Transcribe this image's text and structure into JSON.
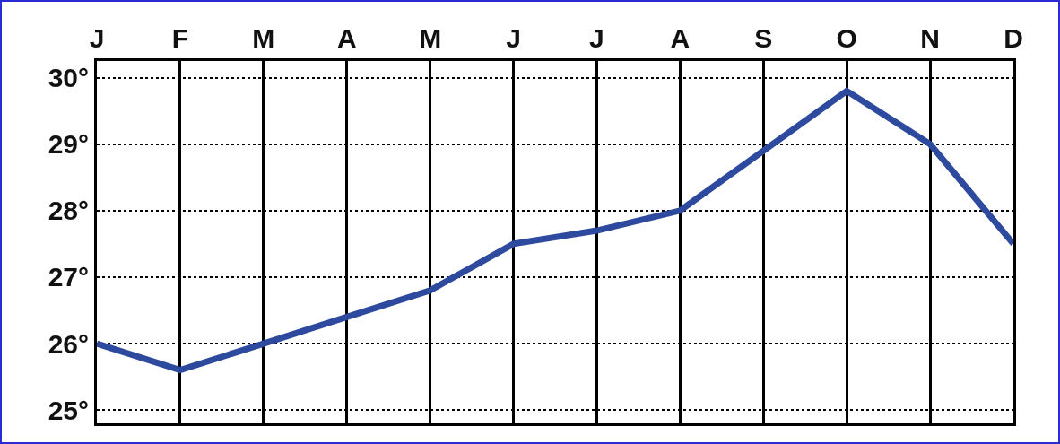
{
  "chart_data": {
    "type": "line",
    "categories": [
      "J",
      "F",
      "M",
      "A",
      "M",
      "J",
      "J",
      "A",
      "S",
      "O",
      "N",
      "D"
    ],
    "series": [
      {
        "color": "#2e4a9e",
        "values": [
          26.0,
          25.6,
          26.0,
          26.4,
          26.8,
          27.5,
          27.7,
          28.0,
          28.9,
          29.8,
          29.0,
          27.5
        ]
      }
    ],
    "ylim": [
      24.8,
      30.25
    ],
    "yticks": [
      {
        "value": 25,
        "label": "25°"
      },
      {
        "value": 26,
        "label": "26°"
      },
      {
        "value": 27,
        "label": "27°"
      },
      {
        "value": 28,
        "label": "28°"
      },
      {
        "value": 29,
        "label": "29°"
      },
      {
        "value": 30,
        "label": "30°"
      }
    ],
    "grid": true
  }
}
